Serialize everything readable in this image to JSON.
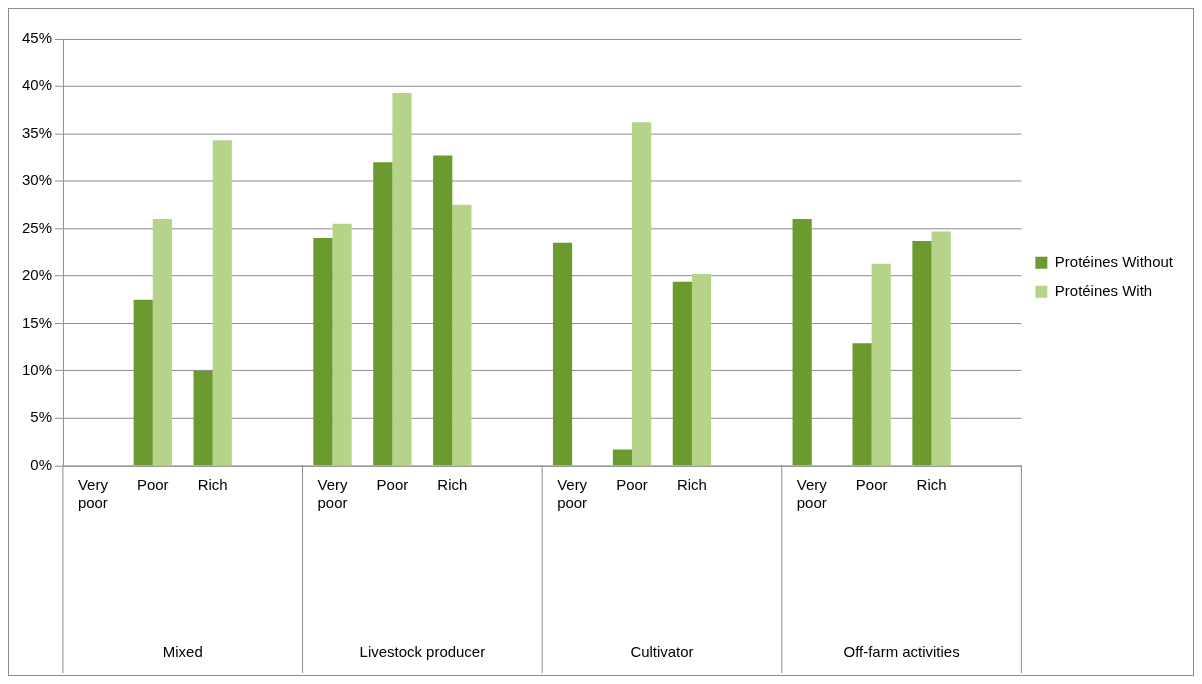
{
  "chart_data": {
    "type": "bar",
    "categories": [
      "Very poor",
      "Poor",
      "Rich",
      null,
      "Very poor",
      "Poor",
      "Rich",
      null,
      "Very poor",
      "Poor",
      "Rich",
      null,
      "Very poor",
      "Poor",
      "Rich",
      null
    ],
    "series": [
      {
        "name": "Protéines Without",
        "color": "#6b9a2e",
        "values": [
          null,
          17.5,
          10,
          null,
          24,
          32,
          32.7,
          null,
          23.5,
          1.7,
          19.4,
          null,
          26,
          12.9,
          23.7,
          null
        ]
      },
      {
        "name": "Protéines With",
        "color": "#b5d48a",
        "values": [
          null,
          26,
          34.3,
          null,
          25.5,
          39.3,
          27.5,
          null,
          null,
          36.2,
          20.2,
          null,
          null,
          21.3,
          24.7,
          null
        ]
      }
    ],
    "annotations": [
      "Mixed",
      "Livestock producer",
      "Cultivator",
      "Off-farm activities"
    ],
    "ylim": [
      0,
      45
    ],
    "yticks": [
      {
        "value": 0,
        "label": "0%"
      },
      {
        "value": 5,
        "label": "5%"
      },
      {
        "value": 10,
        "label": "10%"
      },
      {
        "value": 15,
        "label": "15%"
      },
      {
        "value": 20,
        "label": "20%"
      },
      {
        "value": 25,
        "label": "25%"
      },
      {
        "value": 30,
        "label": "30%"
      },
      {
        "value": 35,
        "label": "35%"
      },
      {
        "value": 40,
        "label": "40%"
      },
      {
        "value": 45,
        "label": "45%"
      }
    ],
    "grid": "y",
    "legend": "right"
  }
}
